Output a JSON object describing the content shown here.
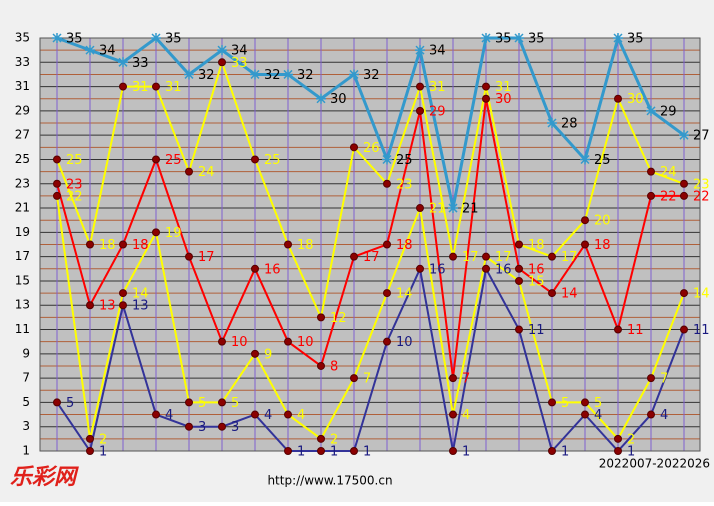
{
  "chart_data": {
    "type": "line",
    "ylim": [
      1,
      35
    ],
    "yticks": [
      1,
      3,
      5,
      7,
      9,
      11,
      13,
      15,
      17,
      19,
      21,
      23,
      25,
      27,
      29,
      31,
      33,
      35
    ],
    "grid": true,
    "series": [
      {
        "color": "#3399cc",
        "label_color": "#000000",
        "marker": "star",
        "values": [
          35,
          34,
          33,
          35,
          32,
          34,
          32,
          32,
          30,
          32,
          25,
          34,
          21,
          35,
          35,
          28,
          25,
          35,
          29,
          27
        ]
      },
      {
        "color": "#ffff00",
        "label_color": "#ffff00",
        "marker": "dot",
        "values": [
          25,
          18,
          31,
          31,
          24,
          33,
          25,
          18,
          12,
          26,
          23,
          31,
          17,
          31,
          18,
          17,
          20,
          30,
          24,
          23
        ]
      },
      {
        "color": "#ff0000",
        "label_color": "#ff0000",
        "marker": "dot",
        "values": [
          23,
          13,
          18,
          25,
          17,
          10,
          16,
          10,
          8,
          17,
          18,
          29,
          7,
          30,
          16,
          14,
          18,
          11,
          22,
          22
        ]
      },
      {
        "color": "#ffff00",
        "label_color": "#ffff00",
        "marker": "dot",
        "values": [
          22,
          2,
          14,
          19,
          5,
          5,
          9,
          4,
          2,
          7,
          14,
          21,
          4,
          17,
          15,
          5,
          5,
          2,
          7,
          14
        ]
      },
      {
        "color": "#333399",
        "label_color": "#1a1a80",
        "marker": "dot",
        "values": [
          5,
          1,
          13,
          4,
          3,
          3,
          4,
          1,
          1,
          1,
          10,
          16,
          1,
          16,
          11,
          1,
          4,
          1,
          4,
          11
        ]
      }
    ],
    "period_range": "2022007-2022026",
    "logo": "乐彩网",
    "url": "http://www.17500.cn"
  }
}
